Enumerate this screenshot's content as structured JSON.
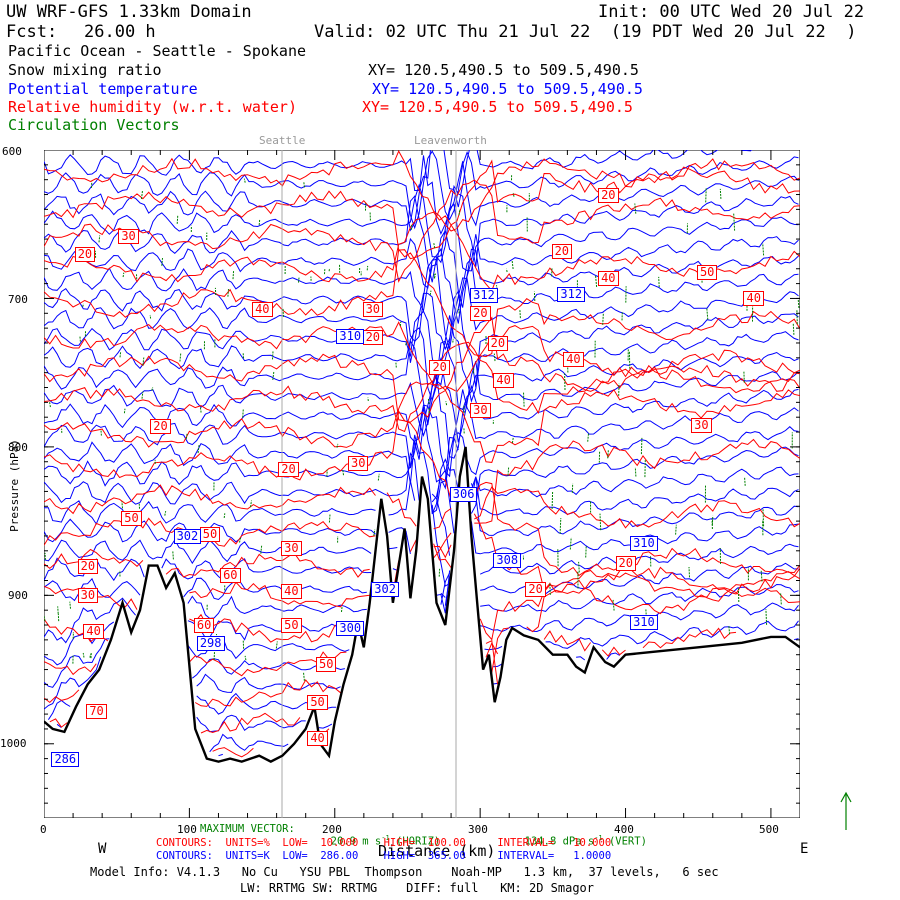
{
  "header": {
    "model_title": "UW WRF-GFS 1.33km Domain",
    "init": "Init: 00 UTC Wed 20 Jul 22",
    "fcst_label": "Fcst:",
    "fcst_value": "26.00 h",
    "valid": "Valid: 02 UTC Thu 21 Jul 22  (19 PDT Wed 20 Jul 22  )",
    "region": "Pacific Ocean - Seattle - Spokane"
  },
  "fields": [
    {
      "name": "Snow mixing ratio",
      "xy": "XY= 120.5,490.5 to 509.5,490.5",
      "color": "#000000"
    },
    {
      "name": "Potential temperature",
      "xy": "XY= 120.5,490.5 to 509.5,490.5",
      "color": "#0000ff"
    },
    {
      "name": "Relative humidity (w.r.t. water)",
      "xy": "XY= 120.5,490.5 to 509.5,490.5",
      "color": "#ff0000"
    },
    {
      "name": "Circulation Vectors",
      "color": "#008000"
    }
  ],
  "locations": [
    "Seattle",
    "Leavenworth"
  ],
  "chart_data": {
    "type": "cross-section",
    "xlabel": "Distance (km)",
    "ylabel": "Pressure (hPa)",
    "xlim": [
      0,
      520
    ],
    "ylim": [
      1050,
      600
    ],
    "x_ticks": [
      "0",
      "100",
      "200",
      "300",
      "400",
      "500"
    ],
    "y_ticks": [
      "600",
      "700",
      "800",
      "900",
      "1000"
    ],
    "west_label": "W",
    "east_label": "E",
    "theta_labels": [
      {
        "x": 12,
        "p": 1010,
        "text": "286"
      },
      {
        "x": 112,
        "p": 932,
        "text": "298"
      },
      {
        "x": 208,
        "p": 922,
        "text": "300"
      },
      {
        "x": 208,
        "p": 725,
        "text": "310"
      },
      {
        "x": 300,
        "p": 698,
        "text": "312"
      },
      {
        "x": 360,
        "p": 697,
        "text": "312"
      },
      {
        "x": 410,
        "p": 865,
        "text": "310"
      },
      {
        "x": 410,
        "p": 918,
        "text": "310"
      },
      {
        "x": 316,
        "p": 876,
        "text": "308"
      },
      {
        "x": 286,
        "p": 832,
        "text": "306"
      },
      {
        "x": 96,
        "p": 860,
        "text": "302"
      },
      {
        "x": 232,
        "p": 896,
        "text": "302"
      }
    ],
    "rh_labels": [
      {
        "x": 28,
        "p": 670,
        "text": "20"
      },
      {
        "x": 58,
        "p": 658,
        "text": "30"
      },
      {
        "x": 150,
        "p": 707,
        "text": "40"
      },
      {
        "x": 80,
        "p": 786,
        "text": "20"
      },
      {
        "x": 168,
        "p": 815,
        "text": "20"
      },
      {
        "x": 216,
        "p": 811,
        "text": "30"
      },
      {
        "x": 226,
        "p": 707,
        "text": "30"
      },
      {
        "x": 226,
        "p": 726,
        "text": "20"
      },
      {
        "x": 272,
        "p": 746,
        "text": "20"
      },
      {
        "x": 300,
        "p": 710,
        "text": "20"
      },
      {
        "x": 312,
        "p": 730,
        "text": "20"
      },
      {
        "x": 316,
        "p": 755,
        "text": "40"
      },
      {
        "x": 300,
        "p": 775,
        "text": "30"
      },
      {
        "x": 356,
        "p": 668,
        "text": "20"
      },
      {
        "x": 388,
        "p": 630,
        "text": "20"
      },
      {
        "x": 388,
        "p": 686,
        "text": "40"
      },
      {
        "x": 364,
        "p": 741,
        "text": "40"
      },
      {
        "x": 456,
        "p": 682,
        "text": "50"
      },
      {
        "x": 488,
        "p": 700,
        "text": "40"
      },
      {
        "x": 452,
        "p": 785,
        "text": "30"
      },
      {
        "x": 400,
        "p": 878,
        "text": "20"
      },
      {
        "x": 338,
        "p": 896,
        "text": "20"
      },
      {
        "x": 30,
        "p": 880,
        "text": "20"
      },
      {
        "x": 30,
        "p": 900,
        "text": "30"
      },
      {
        "x": 34,
        "p": 924,
        "text": "40"
      },
      {
        "x": 60,
        "p": 848,
        "text": "50"
      },
      {
        "x": 114,
        "p": 859,
        "text": "50"
      },
      {
        "x": 128,
        "p": 886,
        "text": "60"
      },
      {
        "x": 110,
        "p": 920,
        "text": "60"
      },
      {
        "x": 170,
        "p": 868,
        "text": "30"
      },
      {
        "x": 170,
        "p": 897,
        "text": "40"
      },
      {
        "x": 170,
        "p": 920,
        "text": "50"
      },
      {
        "x": 194,
        "p": 946,
        "text": "50"
      },
      {
        "x": 188,
        "p": 972,
        "text": "50"
      },
      {
        "x": 188,
        "p": 996,
        "text": "40"
      },
      {
        "x": 36,
        "p": 978,
        "text": "70"
      }
    ]
  },
  "footer": {
    "max_vector_label": "MAXIMUM VECTOR:",
    "max_vector_horiz": "20.9 m s",
    "max_vector_horiz_unit": "-1",
    "max_vector_horiz_tag": "(HORIZ)",
    "max_vector_vert": "134.8 dPa s",
    "max_vector_vert_unit": "-1",
    "max_vector_vert_tag": "(VERT)",
    "rh_contours": "CONTOURS:  UNITS=%  LOW=  10.000    HIGH=  100.00     INTERVAL=   10.000",
    "theta_contours": "CONTOURS:  UNITS=K  LOW=  286.00    HIGH=  365.00     INTERVAL=   1.0000",
    "model_info": "Model Info: V4.1.3   No Cu   YSU PBL  Thompson    Noah-MP   1.3 km,  37 levels,   6 sec",
    "model_info2": "LW: RRTMG SW: RRTMG    DIFF: full   KM: 2D Smagor"
  }
}
